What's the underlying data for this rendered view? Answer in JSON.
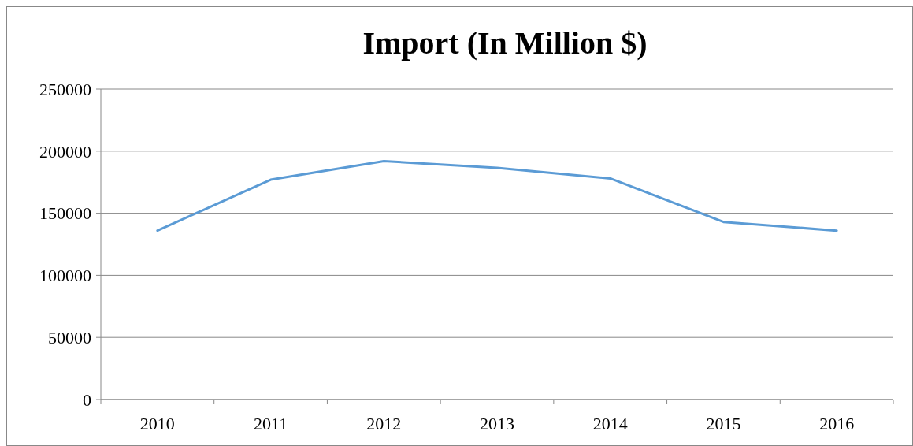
{
  "chart_data": {
    "type": "line",
    "title": "Import (In Million $)",
    "categories": [
      "2010",
      "2011",
      "2012",
      "2013",
      "2014",
      "2015",
      "2016"
    ],
    "series": [
      {
        "color": "#5b9bd5",
        "values": [
          136000,
          177000,
          192000,
          186500,
          178000,
          143000,
          136000
        ]
      }
    ],
    "ylim": [
      0,
      250000
    ],
    "yticks": [
      0,
      50000,
      100000,
      150000,
      200000,
      250000
    ],
    "grid": "y",
    "marker": "none",
    "line_style": "solid"
  }
}
